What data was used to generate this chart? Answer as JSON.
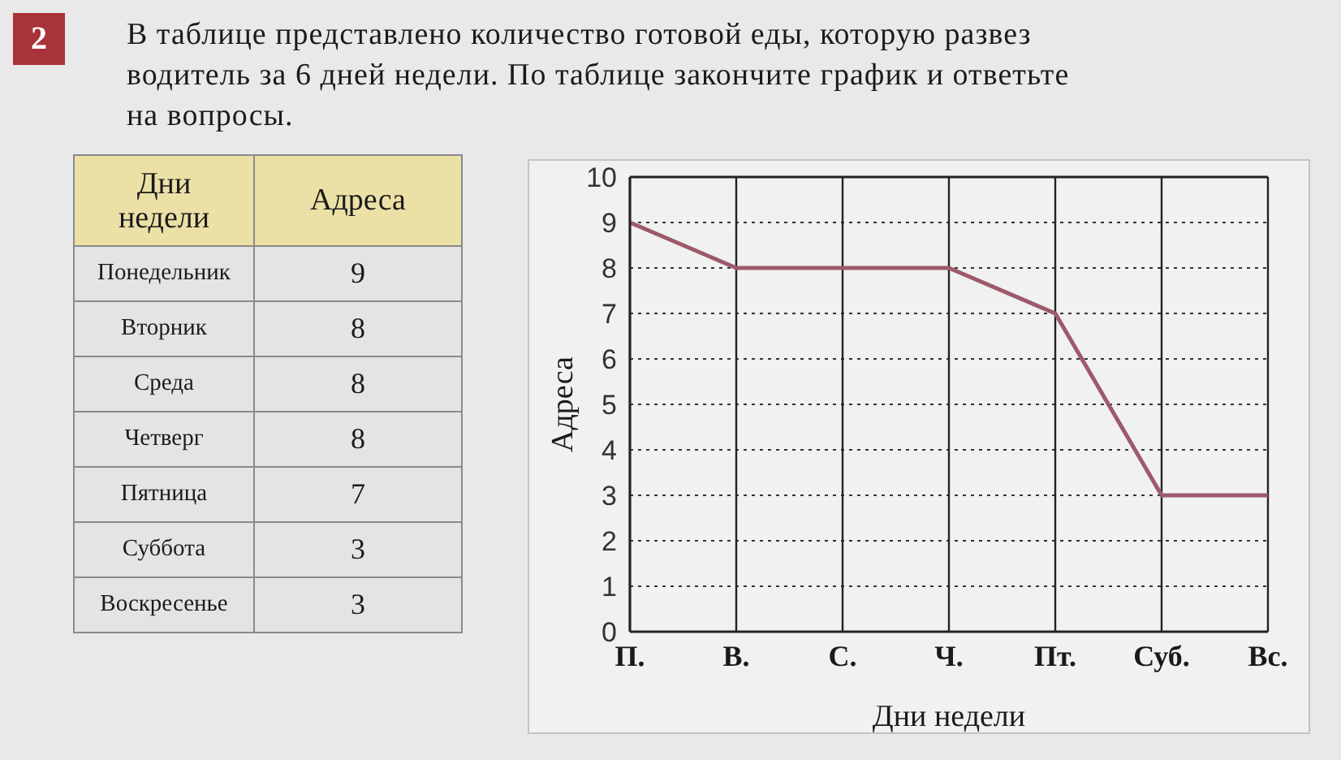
{
  "chart_data": [
    {
      "type": "other",
      "title": "В таблице представлено количество готовой еды, которую развез водитель за 6 дней недели. По таблице закончите график и ответьте на вопросы.",
      "annotations": [
        "2"
      ],
      "xlabel": "Дни недели",
      "ylabel": "Адреса",
      "categories": [
        "Понедельник",
        "Вторник",
        "Среда",
        "Четверг",
        "Пятница",
        "Суббота",
        "Воскресенье"
      ],
      "values": [
        9,
        8,
        8,
        8,
        7,
        3,
        3
      ],
      "data_labels": true
    },
    {
      "type": "line",
      "categories": [
        "П.",
        "В.",
        "С.",
        "Ч.",
        "Пт.",
        "Суб.",
        "Вс."
      ],
      "values": [
        9,
        8,
        8,
        8,
        7,
        3,
        3
      ],
      "color": "#9c5a6a",
      "xlabel": "Дни недели",
      "ylabel": "Адреса",
      "ylim": [
        0,
        10
      ],
      "yticks": [
        0,
        1,
        2,
        3,
        4,
        5,
        6,
        7,
        8,
        9,
        10
      ],
      "grid": true
    }
  ]
}
